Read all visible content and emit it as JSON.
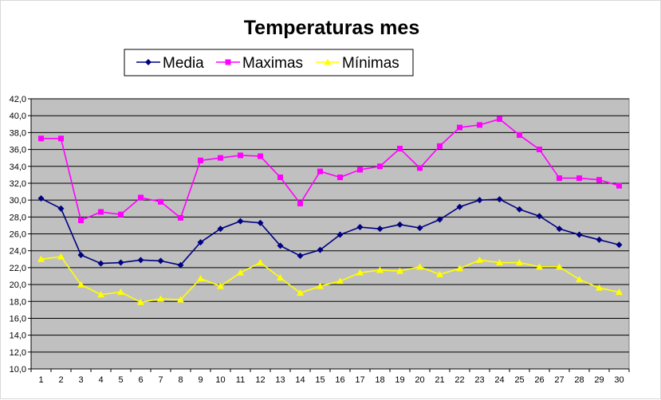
{
  "chart_data": {
    "type": "line",
    "title": "Temperaturas mes",
    "xlabel": "",
    "ylabel": "",
    "x": [
      1,
      2,
      3,
      4,
      5,
      6,
      7,
      8,
      9,
      10,
      11,
      12,
      13,
      14,
      15,
      16,
      17,
      18,
      19,
      20,
      21,
      22,
      23,
      24,
      25,
      26,
      27,
      28,
      29,
      30
    ],
    "ylim": [
      10,
      42
    ],
    "ytick_step": 2,
    "ytick_labels": [
      "10,0",
      "12,0",
      "14,0",
      "16,0",
      "18,0",
      "20,0",
      "22,0",
      "24,0",
      "26,0",
      "28,0",
      "30,0",
      "32,0",
      "34,0",
      "36,0",
      "38,0",
      "40,0",
      "42,0"
    ],
    "grid": true,
    "legend_position": "top",
    "plot_background": "#c0c0c0",
    "series": [
      {
        "name": "Media",
        "color": "#000080",
        "marker": "diamond",
        "values": [
          30.2,
          29.0,
          23.5,
          22.5,
          22.6,
          22.9,
          22.8,
          22.3,
          25.0,
          26.6,
          27.5,
          27.3,
          24.6,
          23.4,
          24.1,
          25.9,
          26.8,
          26.6,
          27.1,
          26.7,
          27.7,
          29.2,
          30.0,
          30.1,
          28.9,
          28.1,
          26.6,
          25.9,
          25.3,
          24.7
        ]
      },
      {
        "name": "Maximas",
        "color": "#ff00ff",
        "marker": "square",
        "values": [
          37.3,
          37.3,
          27.6,
          28.6,
          28.3,
          30.3,
          29.8,
          27.9,
          34.7,
          35.0,
          35.3,
          35.2,
          32.7,
          29.6,
          33.4,
          32.7,
          33.6,
          34.0,
          36.1,
          33.8,
          36.4,
          38.6,
          38.9,
          39.6,
          37.7,
          36.0,
          32.6,
          32.6,
          32.4,
          31.7
        ]
      },
      {
        "name": "Mínimas",
        "color": "#ffff00",
        "marker": "triangle",
        "values": [
          23.0,
          23.3,
          20.0,
          18.8,
          19.1,
          17.9,
          18.3,
          18.2,
          20.7,
          19.8,
          21.4,
          22.6,
          20.8,
          19.0,
          19.8,
          20.4,
          21.4,
          21.7,
          21.6,
          22.1,
          21.2,
          21.9,
          22.9,
          22.6,
          22.6,
          22.1,
          22.1,
          20.6,
          19.6,
          19.1
        ]
      }
    ]
  }
}
